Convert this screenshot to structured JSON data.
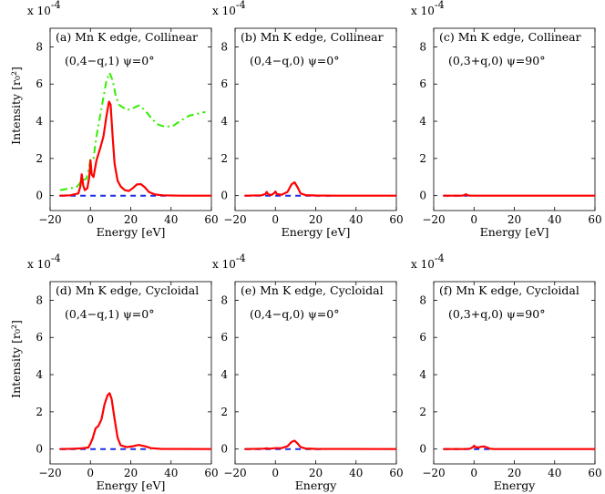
{
  "chart_data": [
    {
      "type": "line",
      "panel": "a",
      "title_line1": "(a) Mn K edge, Collinear",
      "title_line2": "(0,4−q,1) ψ=0°",
      "scale_label": "x 10^-4",
      "xlabel": "Energy [eV]",
      "ylabel": "Intensity [r₀²]",
      "xlim": [
        -20,
        60
      ],
      "ylim": [
        -0.8,
        9
      ],
      "xticks": [
        "−20",
        "0",
        "20",
        "40",
        "60"
      ],
      "yticks": [
        "0",
        "2",
        "4",
        "6",
        "8"
      ],
      "series": [
        {
          "name": "red-solid",
          "color": "#ff0000",
          "style": "solid",
          "points": [
            [
              -15,
              0
            ],
            [
              -10,
              0.02
            ],
            [
              -6,
              0.12
            ],
            [
              -5,
              0.5
            ],
            [
              -4.3,
              1.15
            ],
            [
              -3.6,
              0.55
            ],
            [
              -2.8,
              0.3
            ],
            [
              -1.5,
              0.4
            ],
            [
              -0.5,
              1.05
            ],
            [
              0,
              1.9
            ],
            [
              0.6,
              1.15
            ],
            [
              1.5,
              1.0
            ],
            [
              3,
              1.9
            ],
            [
              5,
              2.6
            ],
            [
              6.5,
              3.2
            ],
            [
              8,
              4.3
            ],
            [
              9.2,
              5.05
            ],
            [
              10,
              4.9
            ],
            [
              11,
              3.2
            ],
            [
              12,
              1.7
            ],
            [
              13.5,
              0.8
            ],
            [
              15,
              0.5
            ],
            [
              17,
              0.3
            ],
            [
              19,
              0.25
            ],
            [
              21,
              0.4
            ],
            [
              23,
              0.6
            ],
            [
              25,
              0.62
            ],
            [
              27,
              0.45
            ],
            [
              29,
              0.2
            ],
            [
              32,
              0.06
            ],
            [
              36,
              0.02
            ],
            [
              45,
              0
            ],
            [
              60,
              0
            ]
          ]
        },
        {
          "name": "green-dashdot",
          "color": "#33ee00",
          "style": "dashdot",
          "points": [
            [
              -15,
              0.3
            ],
            [
              -10,
              0.4
            ],
            [
              -7,
              0.45
            ],
            [
              -5,
              0.7
            ],
            [
              -4.3,
              1.05
            ],
            [
              -3.5,
              0.85
            ],
            [
              -2,
              0.9
            ],
            [
              -0.5,
              1.6
            ],
            [
              0,
              2.0
            ],
            [
              1.5,
              2.0
            ],
            [
              3,
              3.2
            ],
            [
              5,
              4.4
            ],
            [
              6.5,
              5.3
            ],
            [
              8,
              6.2
            ],
            [
              9.5,
              6.6
            ],
            [
              11,
              6.2
            ],
            [
              12.5,
              5.4
            ],
            [
              14,
              4.9
            ],
            [
              16,
              4.75
            ],
            [
              18,
              4.6
            ],
            [
              21,
              4.7
            ],
            [
              24,
              4.85
            ],
            [
              27,
              4.6
            ],
            [
              30,
              4.2
            ],
            [
              33,
              3.85
            ],
            [
              37,
              3.7
            ],
            [
              41,
              3.75
            ],
            [
              45,
              4.05
            ],
            [
              49,
              4.3
            ],
            [
              53,
              4.4
            ],
            [
              57,
              4.5
            ]
          ]
        },
        {
          "name": "blue-dashed",
          "color": "#1a2ee6",
          "style": "dashed",
          "points": [
            [
              -15,
              0
            ],
            [
              -3,
              0
            ],
            [
              0,
              0
            ],
            [
              30,
              0
            ],
            [
              40,
              0
            ]
          ]
        }
      ]
    },
    {
      "type": "line",
      "panel": "b",
      "title_line1": "(b) Mn K edge, Collinear",
      "title_line2": "(0,4−q,0) ψ=0°",
      "scale_label": "x 10^-4",
      "xlabel": "Energy [eV]",
      "xlim": [
        -20,
        60
      ],
      "ylim": [
        -0.8,
        9
      ],
      "xticks": [
        "−20",
        "0",
        "20",
        "40",
        "60"
      ],
      "yticks": [
        "0",
        "2",
        "4",
        "6",
        "8"
      ],
      "series": [
        {
          "name": "red-solid",
          "color": "#ff0000",
          "style": "solid",
          "points": [
            [
              -15,
              0
            ],
            [
              -7,
              0.02
            ],
            [
              -5,
              0.08
            ],
            [
              -4.3,
              0.2
            ],
            [
              -3.5,
              0.06
            ],
            [
              -2,
              0.04
            ],
            [
              -0.8,
              0.12
            ],
            [
              0,
              0.22
            ],
            [
              0.8,
              0.08
            ],
            [
              3,
              0.05
            ],
            [
              6,
              0.2
            ],
            [
              8,
              0.6
            ],
            [
              9.5,
              0.72
            ],
            [
              11,
              0.45
            ],
            [
              12.5,
              0.12
            ],
            [
              15,
              0.03
            ],
            [
              20,
              0.01
            ],
            [
              30,
              0
            ],
            [
              60,
              0
            ]
          ]
        },
        {
          "name": "blue-dashed",
          "color": "#1a2ee6",
          "style": "dashed",
          "points": [
            [
              -15,
              0
            ],
            [
              0,
              0
            ],
            [
              30,
              0
            ]
          ]
        }
      ]
    },
    {
      "type": "line",
      "panel": "c",
      "title_line1": "(c) Mn K edge, Collinear",
      "title_line2": "(0,3+q,0) ψ=90°",
      "scale_label": "x 10^-4",
      "xlabel": "Energy [eV]",
      "xlim": [
        -20,
        60
      ],
      "ylim": [
        -0.8,
        9
      ],
      "xticks": [
        "−20",
        "0",
        "20",
        "40",
        "60"
      ],
      "yticks": [
        "0",
        "2",
        "4",
        "6",
        "8"
      ],
      "series": [
        {
          "name": "red-solid",
          "color": "#ff0000",
          "style": "solid",
          "points": [
            [
              -15,
              0
            ],
            [
              -6,
              0
            ],
            [
              -4.5,
              0.04
            ],
            [
              -4,
              0.08
            ],
            [
              -3.5,
              0.03
            ],
            [
              -2,
              0
            ],
            [
              10,
              0
            ],
            [
              60,
              0
            ]
          ]
        },
        {
          "name": "blue-dashed",
          "color": "#1a2ee6",
          "style": "dashed",
          "points": [
            [
              -15,
              0
            ],
            [
              -3,
              0
            ]
          ]
        }
      ]
    },
    {
      "type": "line",
      "panel": "d",
      "title_line1": "(d) Mn K edge, Cycloidal",
      "title_line2": "(0,4−q,1) ψ=0°",
      "scale_label": "x 10^-4",
      "xlabel": "Energy [eV]",
      "ylabel": "Intensity [r₀²]",
      "xlim": [
        -20,
        60
      ],
      "ylim": [
        -0.8,
        9
      ],
      "xticks": [
        "−20",
        "0",
        "20",
        "40",
        "60"
      ],
      "yticks": [
        "0",
        "2",
        "4",
        "6",
        "8"
      ],
      "series": [
        {
          "name": "red-solid",
          "color": "#ff0000",
          "style": "solid",
          "points": [
            [
              -15,
              0
            ],
            [
              -8,
              0.02
            ],
            [
              -4,
              0.04
            ],
            [
              -1,
              0.08
            ],
            [
              0,
              0.3
            ],
            [
              1.2,
              0.6
            ],
            [
              2.5,
              1.1
            ],
            [
              4,
              1.25
            ],
            [
              5.5,
              1.6
            ],
            [
              7,
              2.4
            ],
            [
              8.5,
              2.9
            ],
            [
              9.5,
              3.0
            ],
            [
              10.5,
              2.7
            ],
            [
              12,
              1.6
            ],
            [
              13.5,
              0.6
            ],
            [
              15,
              0.2
            ],
            [
              18,
              0.1
            ],
            [
              21,
              0.15
            ],
            [
              24,
              0.22
            ],
            [
              27,
              0.15
            ],
            [
              30,
              0.05
            ],
            [
              35,
              0.01
            ],
            [
              60,
              0
            ]
          ]
        },
        {
          "name": "blue-dashed",
          "color": "#1a2ee6",
          "style": "dashed",
          "points": [
            [
              -15,
              0
            ],
            [
              0,
              0
            ],
            [
              30,
              0
            ]
          ]
        }
      ]
    },
    {
      "type": "line",
      "panel": "e",
      "title_line1": "(e) Mn K edge, Cycloidal",
      "title_line2": "(0,4−q,0) ψ=0°",
      "scale_label": "x 10^-4",
      "xlabel": "Energy",
      "xlim": [
        -20,
        60
      ],
      "ylim": [
        -0.8,
        9
      ],
      "xticks": [
        "−20",
        "0",
        "20",
        "40",
        "60"
      ],
      "yticks": [
        "0",
        "2",
        "4",
        "6",
        "8"
      ],
      "series": [
        {
          "name": "red-solid",
          "color": "#ff0000",
          "style": "solid",
          "points": [
            [
              -15,
              0
            ],
            [
              -6,
              0.02
            ],
            [
              -4.3,
              0.04
            ],
            [
              -3,
              0.02
            ],
            [
              0,
              0.05
            ],
            [
              3,
              0.05
            ],
            [
              6,
              0.15
            ],
            [
              8,
              0.38
            ],
            [
              9.5,
              0.45
            ],
            [
              11,
              0.3
            ],
            [
              12.5,
              0.1
            ],
            [
              15,
              0.03
            ],
            [
              20,
              0.01
            ],
            [
              60,
              0
            ]
          ]
        },
        {
          "name": "blue-dashed",
          "color": "#1a2ee6",
          "style": "dashed",
          "points": [
            [
              -15,
              0
            ],
            [
              0,
              0
            ],
            [
              25,
              0
            ]
          ]
        }
      ]
    },
    {
      "type": "line",
      "panel": "f",
      "title_line1": "(f) Mn K edge, Cycloidal",
      "title_line2": "(0,3+q,0) ψ=90°",
      "scale_label": "x 10^-4",
      "xlabel": "Energy",
      "xlim": [
        -20,
        60
      ],
      "ylim": [
        -0.8,
        9
      ],
      "xticks": [
        "−20",
        "0",
        "20",
        "40",
        "60"
      ],
      "yticks": [
        "0",
        "2",
        "4",
        "6",
        "8"
      ],
      "series": [
        {
          "name": "red-solid",
          "color": "#ff0000",
          "style": "solid",
          "points": [
            [
              -15,
              0
            ],
            [
              -5,
              0
            ],
            [
              -2,
              0.02
            ],
            [
              -0.5,
              0.1
            ],
            [
              0,
              0.18
            ],
            [
              0.8,
              0.1
            ],
            [
              2,
              0.08
            ],
            [
              3.5,
              0.12
            ],
            [
              5,
              0.14
            ],
            [
              6.5,
              0.08
            ],
            [
              8,
              0.02
            ],
            [
              10,
              0
            ],
            [
              60,
              0
            ]
          ]
        },
        {
          "name": "blue-dashed",
          "color": "#1a2ee6",
          "style": "dashed",
          "points": [
            [
              -15,
              0
            ],
            [
              0,
              0
            ],
            [
              8,
              0
            ]
          ]
        }
      ]
    }
  ]
}
